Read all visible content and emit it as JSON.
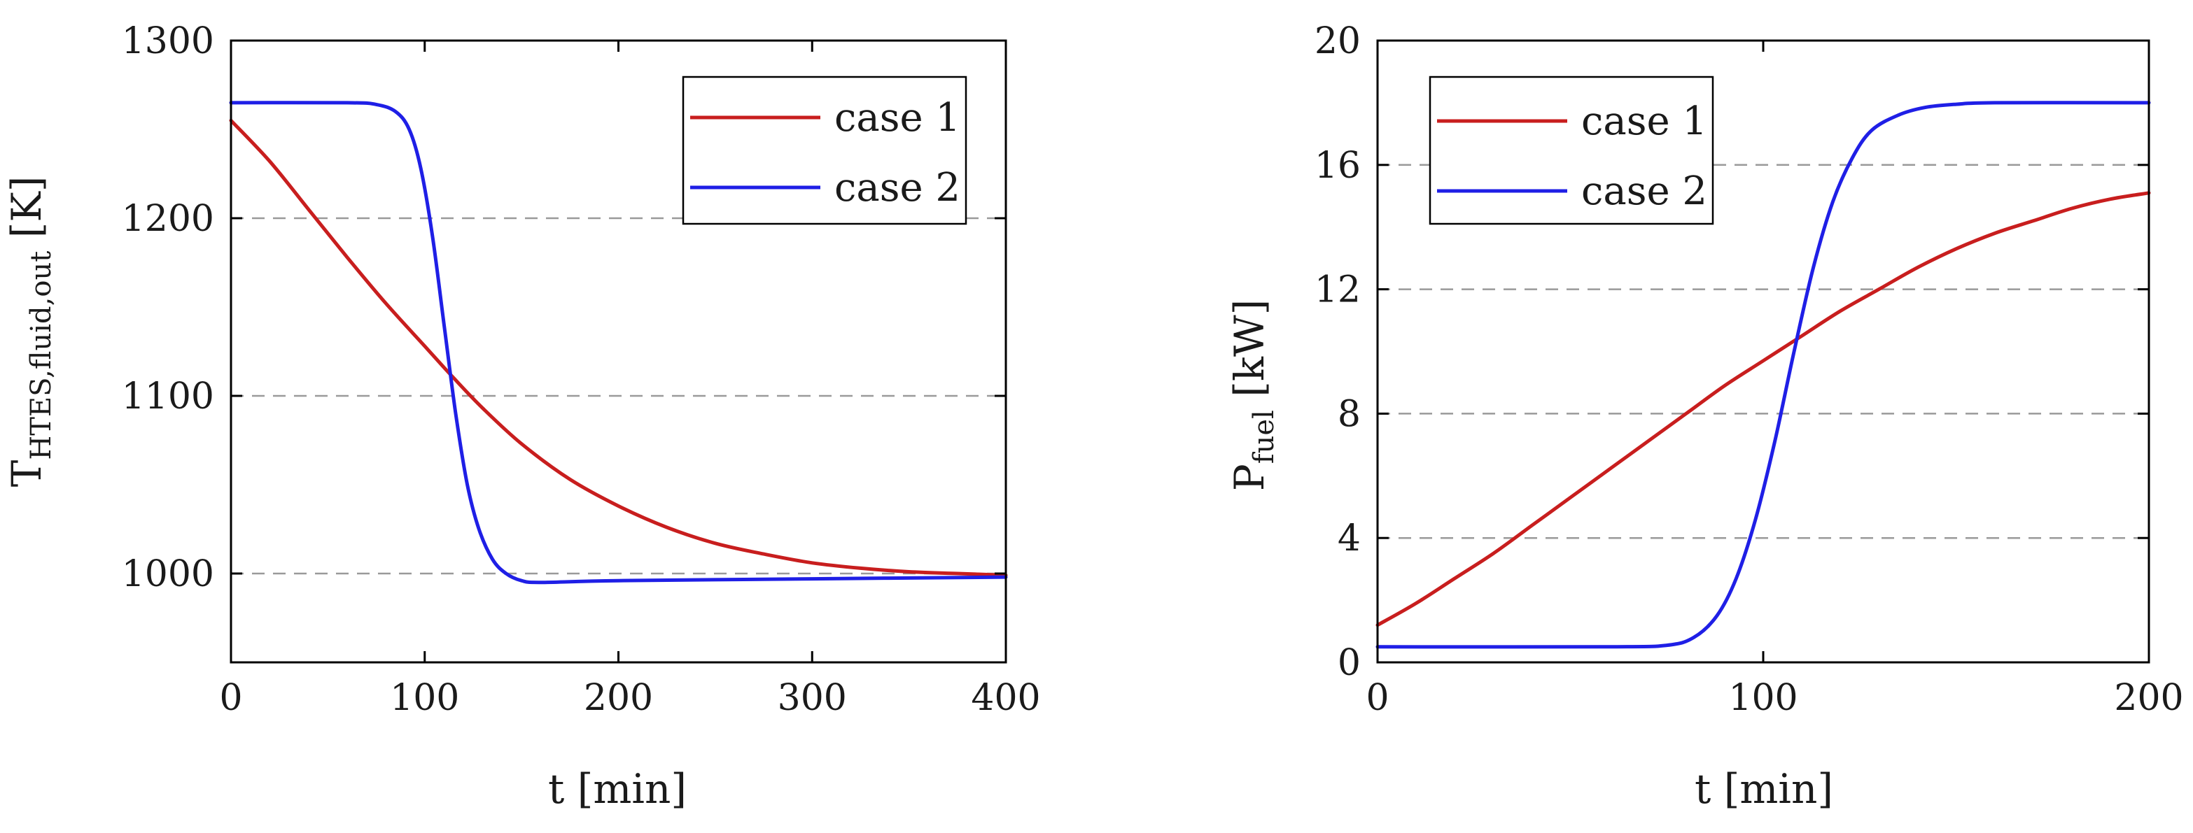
{
  "chart_data": [
    {
      "type": "line",
      "xlabel": "t [min]",
      "ylabel_main": "T",
      "ylabel_sub": "HTES,fluid,out",
      "ylabel_unit": "[K]",
      "xlim": [
        0,
        400
      ],
      "ylim": [
        950,
        1300
      ],
      "xticks": [
        0,
        100,
        200,
        300,
        400
      ],
      "yticks": [
        1000,
        1100,
        1200,
        1300
      ],
      "grid_y": [
        1000,
        1100,
        1200
      ],
      "legend_placement": "top-right",
      "series": [
        {
          "name": "case 1",
          "color": "#c81e1e",
          "x": [
            0,
            20,
            40,
            60,
            80,
            100,
            115,
            130,
            150,
            175,
            200,
            225,
            250,
            275,
            300,
            325,
            350,
            375,
            400
          ],
          "y": [
            1255,
            1232,
            1205,
            1178,
            1152,
            1128,
            1110,
            1093,
            1073,
            1053,
            1038,
            1026,
            1017,
            1011,
            1006,
            1003,
            1001,
            1000,
            999
          ]
        },
        {
          "name": "case 2",
          "color": "#1f1fe6",
          "x": [
            0,
            60,
            75,
            85,
            92,
            98,
            104,
            110,
            116,
            122,
            128,
            135,
            142,
            150,
            160,
            200,
            300,
            400
          ],
          "y": [
            1265,
            1265,
            1264,
            1260,
            1250,
            1228,
            1190,
            1140,
            1090,
            1050,
            1025,
            1008,
            1000,
            996,
            995,
            996,
            997,
            998
          ]
        }
      ]
    },
    {
      "type": "line",
      "xlabel": "t [min]",
      "ylabel_main": "P",
      "ylabel_sub": "fuel",
      "ylabel_unit": "[kW]",
      "xlim": [
        0,
        200
      ],
      "ylim": [
        0,
        20
      ],
      "xticks": [
        0,
        100,
        200
      ],
      "yticks": [
        0,
        4,
        8,
        12,
        16,
        20
      ],
      "grid_y": [
        4,
        8,
        12,
        16
      ],
      "legend_placement": "top-left",
      "series": [
        {
          "name": "case 1",
          "color": "#c81e1e",
          "x": [
            0,
            10,
            20,
            30,
            40,
            50,
            60,
            70,
            80,
            90,
            100,
            110,
            120,
            130,
            140,
            150,
            160,
            170,
            180,
            190,
            200
          ],
          "y": [
            1.2,
            1.9,
            2.7,
            3.5,
            4.4,
            5.3,
            6.2,
            7.1,
            8.0,
            8.9,
            9.7,
            10.5,
            11.3,
            12.0,
            12.7,
            13.3,
            13.8,
            14.2,
            14.6,
            14.9,
            15.1
          ]
        },
        {
          "name": "case 2",
          "color": "#1f1fe6",
          "x": [
            0,
            60,
            75,
            82,
            88,
            93,
            98,
            103,
            108,
            113,
            118,
            123,
            128,
            135,
            142,
            150,
            160,
            200
          ],
          "y": [
            0.5,
            0.5,
            0.55,
            0.8,
            1.5,
            2.7,
            4.6,
            7.1,
            10.0,
            12.7,
            14.8,
            16.2,
            17.1,
            17.6,
            17.85,
            17.95,
            18.0,
            18.0
          ]
        }
      ]
    }
  ]
}
